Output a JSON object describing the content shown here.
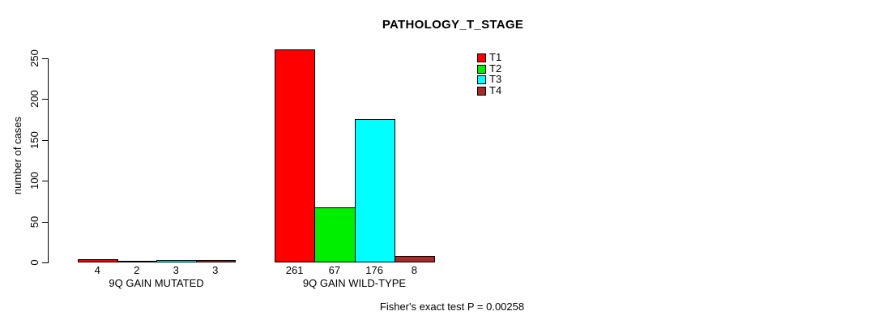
{
  "chart_data": {
    "type": "bar",
    "title": "PATHOLOGY_T_STAGE",
    "xlabel": "",
    "ylabel": "number of cases",
    "ylim": [
      0,
      250
    ],
    "yticks": [
      0,
      50,
      100,
      150,
      200,
      250
    ],
    "grid": false,
    "legend_position": "top-right",
    "categories": [
      "9Q GAIN MUTATED",
      "9Q GAIN WILD-TYPE"
    ],
    "series": [
      {
        "name": "T1",
        "color": "#ff0000",
        "values": [
          4,
          261
        ]
      },
      {
        "name": "T2",
        "color": "#00ee00",
        "values": [
          2,
          67
        ]
      },
      {
        "name": "T3",
        "color": "#00ffff",
        "values": [
          3,
          176
        ]
      },
      {
        "name": "T4",
        "color": "#a52a2a",
        "values": [
          3,
          8
        ]
      }
    ],
    "bar_value_labels": [
      [
        4,
        2,
        3,
        3
      ],
      [
        261,
        67,
        176,
        8
      ]
    ],
    "annotation": "Fisher's exact test P = 0.00258"
  }
}
